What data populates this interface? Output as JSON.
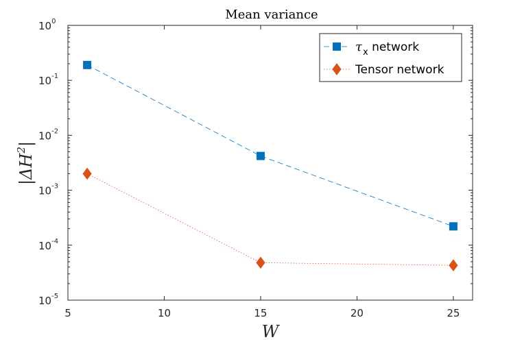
{
  "chart_data": {
    "type": "line",
    "title": "Mean variance",
    "xlabel": "W",
    "ylabel_parts": {
      "prefix": "|ΔH",
      "sup": "2",
      "suffix": "|"
    },
    "x": [
      6,
      15,
      25
    ],
    "xlim": [
      5,
      26
    ],
    "xticks": [
      5,
      10,
      15,
      20,
      25
    ],
    "yscale": "log",
    "ylim": [
      1e-05,
      1
    ],
    "yticks": [
      {
        "value": 1.0,
        "base": "10",
        "exp": "0"
      },
      {
        "value": 0.1,
        "base": "10",
        "exp": "-1"
      },
      {
        "value": 0.01,
        "base": "10",
        "exp": "-2"
      },
      {
        "value": 0.001,
        "base": "10",
        "exp": "-3"
      },
      {
        "value": 0.0001,
        "base": "10",
        "exp": "-4"
      },
      {
        "value": 1e-05,
        "base": "10",
        "exp": "-5"
      }
    ],
    "grid": false,
    "legend_position": "top-right",
    "series": [
      {
        "name": "τx network",
        "legend_main": "τ",
        "legend_sub": "x",
        "legend_rest": " network",
        "values": [
          0.19,
          0.0042,
          0.00022
        ],
        "color": "#0072BD",
        "marker": "square",
        "line_style": "dashed"
      },
      {
        "name": "Tensor network",
        "legend_main": "",
        "legend_sub": "",
        "legend_rest": "Tensor network",
        "values": [
          0.002,
          4.8e-05,
          4.3e-05
        ],
        "color": "#D95319",
        "marker": "diamond",
        "line_style": "dotted"
      }
    ]
  }
}
